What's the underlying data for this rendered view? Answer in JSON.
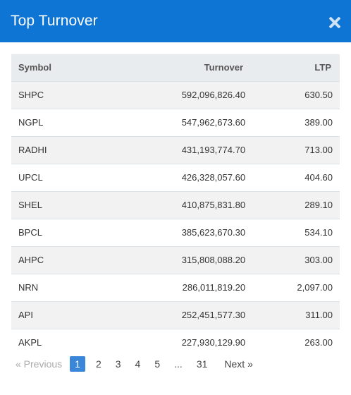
{
  "modal": {
    "title": "Top Turnover",
    "close_icon": "close-icon"
  },
  "table": {
    "headers": {
      "symbol": "Symbol",
      "turnover": "Turnover",
      "ltp": "LTP"
    },
    "rows": [
      {
        "symbol": "SHPC",
        "turnover": "592,096,826.40",
        "ltp": "630.50"
      },
      {
        "symbol": "NGPL",
        "turnover": "547,962,673.60",
        "ltp": "389.00"
      },
      {
        "symbol": "RADHI",
        "turnover": "431,193,774.70",
        "ltp": "713.00"
      },
      {
        "symbol": "UPCL",
        "turnover": "426,328,057.60",
        "ltp": "404.60"
      },
      {
        "symbol": "SHEL",
        "turnover": "410,875,831.80",
        "ltp": "289.10"
      },
      {
        "symbol": "BPCL",
        "turnover": "385,623,670.30",
        "ltp": "534.10"
      },
      {
        "symbol": "AHPC",
        "turnover": "315,808,088.20",
        "ltp": "303.00"
      },
      {
        "symbol": "NRN",
        "turnover": "286,011,819.20",
        "ltp": "2,097.00"
      },
      {
        "symbol": "API",
        "turnover": "252,451,577.30",
        "ltp": "311.00"
      },
      {
        "symbol": "AKPL",
        "turnover": "227,930,129.90",
        "ltp": "263.00"
      }
    ]
  },
  "pagination": {
    "prev_label": "« Previous",
    "pages": [
      "1",
      "2",
      "3",
      "4",
      "5"
    ],
    "ellipsis": "...",
    "last_page": "31",
    "next_label": "Next »",
    "active_page": "1"
  }
}
